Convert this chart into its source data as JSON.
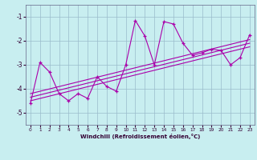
{
  "title": "",
  "xlabel": "Windchill (Refroidissement éolien,°C)",
  "ylabel": "",
  "background_color": "#c8eef0",
  "grid_color": "#99bbcc",
  "line_color": "#aa00aa",
  "xlim": [
    -0.5,
    23.5
  ],
  "ylim": [
    -5.5,
    -0.5
  ],
  "yticks": [
    -5,
    -4,
    -3,
    -2,
    -1
  ],
  "xticks": [
    0,
    1,
    2,
    3,
    4,
    5,
    6,
    7,
    8,
    9,
    10,
    11,
    12,
    13,
    14,
    15,
    16,
    17,
    18,
    19,
    20,
    21,
    22,
    23
  ],
  "data_x": [
    0,
    1,
    2,
    3,
    4,
    5,
    6,
    7,
    8,
    9,
    10,
    11,
    12,
    13,
    14,
    15,
    16,
    17,
    18,
    19,
    20,
    21,
    22,
    23
  ],
  "data_y": [
    -4.6,
    -2.9,
    -3.3,
    -4.2,
    -4.5,
    -4.2,
    -4.4,
    -3.5,
    -3.9,
    -4.1,
    -3.0,
    -1.15,
    -1.8,
    -3.0,
    -1.2,
    -1.3,
    -2.1,
    -2.6,
    -2.5,
    -2.35,
    -2.4,
    -3.0,
    -2.7,
    -1.75
  ],
  "reg_line": [
    0,
    -4.2,
    23,
    -1.95
  ],
  "reg_line2": [
    0,
    -4.35,
    23,
    -2.1
  ],
  "reg_line3": [
    0,
    -4.5,
    23,
    -2.25
  ]
}
